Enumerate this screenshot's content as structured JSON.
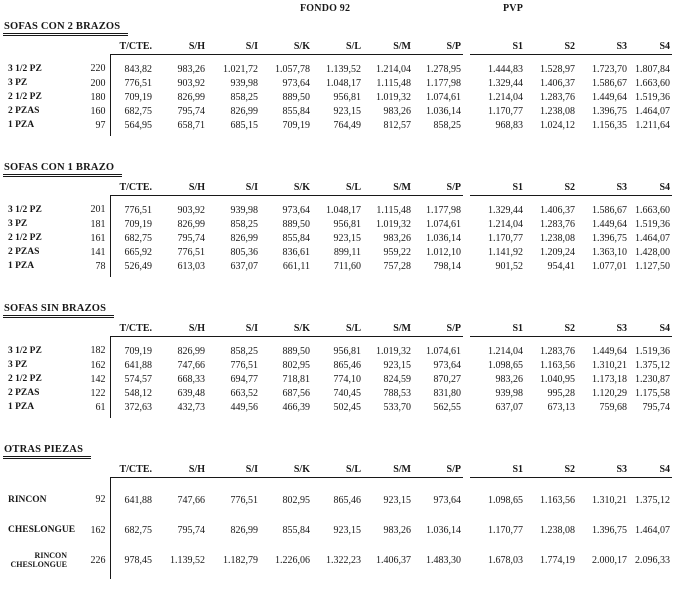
{
  "page": {
    "group_headers": {
      "fondo": "FONDO 92",
      "pvp": "PVP"
    }
  },
  "columns": [
    "T/CTE.",
    "S/H",
    "S/I",
    "S/K",
    "S/L",
    "S/M",
    "S/P",
    "S1",
    "S2",
    "S3",
    "S4"
  ],
  "sections": [
    {
      "title": "SOFAS CON 2 BRAZOS",
      "rows": [
        {
          "label": "3 1/2 PZ",
          "measure": "220",
          "values": [
            "843,82",
            "983,26",
            "1.021,72",
            "1.057,78",
            "1.139,52",
            "1.214,04",
            "1.278,95",
            "1.444,83",
            "1.528,97",
            "1.723,70",
            "1.807,84"
          ]
        },
        {
          "label": "3 PZ",
          "measure": "200",
          "values": [
            "776,51",
            "903,92",
            "939,98",
            "973,64",
            "1.048,17",
            "1.115,48",
            "1.177,98",
            "1.329,44",
            "1.406,37",
            "1.586,67",
            "1.663,60"
          ]
        },
        {
          "label": "2 1/2 PZ",
          "measure": "180",
          "values": [
            "709,19",
            "826,99",
            "858,25",
            "889,50",
            "956,81",
            "1.019,32",
            "1.074,61",
            "1.214,04",
            "1.283,76",
            "1.449,64",
            "1.519,36"
          ]
        },
        {
          "label": "2 PZAS",
          "measure": "160",
          "values": [
            "682,75",
            "795,74",
            "826,99",
            "855,84",
            "923,15",
            "983,26",
            "1.036,14",
            "1.170,77",
            "1.238,08",
            "1.396,75",
            "1.464,07"
          ]
        },
        {
          "label": "1 PZA",
          "measure": "97",
          "values": [
            "564,95",
            "658,71",
            "685,15",
            "709,19",
            "764,49",
            "812,57",
            "858,25",
            "968,83",
            "1.024,12",
            "1.156,35",
            "1.211,64"
          ]
        }
      ]
    },
    {
      "title": "SOFAS CON 1 BRAZO",
      "rows": [
        {
          "label": "3 1/2 PZ",
          "measure": "201",
          "values": [
            "776,51",
            "903,92",
            "939,98",
            "973,64",
            "1.048,17",
            "1.115,48",
            "1.177,98",
            "1.329,44",
            "1.406,37",
            "1.586,67",
            "1.663,60"
          ]
        },
        {
          "label": "3 PZ",
          "measure": "181",
          "values": [
            "709,19",
            "826,99",
            "858,25",
            "889,50",
            "956,81",
            "1.019,32",
            "1.074,61",
            "1.214,04",
            "1.283,76",
            "1.449,64",
            "1.519,36"
          ]
        },
        {
          "label": "2 1/2 PZ",
          "measure": "161",
          "values": [
            "682,75",
            "795,74",
            "826,99",
            "855,84",
            "923,15",
            "983,26",
            "1.036,14",
            "1.170,77",
            "1.238,08",
            "1.396,75",
            "1.464,07"
          ]
        },
        {
          "label": "2 PZAS",
          "measure": "141",
          "values": [
            "665,92",
            "776,51",
            "805,36",
            "836,61",
            "899,11",
            "959,22",
            "1.012,10",
            "1.141,92",
            "1.209,24",
            "1.363,10",
            "1.428,00"
          ]
        },
        {
          "label": "1 PZA",
          "measure": "78",
          "values": [
            "526,49",
            "613,03",
            "637,07",
            "661,11",
            "711,60",
            "757,28",
            "798,14",
            "901,52",
            "954,41",
            "1.077,01",
            "1.127,50"
          ]
        }
      ]
    },
    {
      "title": "SOFAS SIN BRAZOS",
      "rows": [
        {
          "label": "3 1/2 PZ",
          "measure": "182",
          "values": [
            "709,19",
            "826,99",
            "858,25",
            "889,50",
            "956,81",
            "1.019,32",
            "1.074,61",
            "1.214,04",
            "1.283,76",
            "1.449,64",
            "1.519,36"
          ]
        },
        {
          "label": "3 PZ",
          "measure": "162",
          "values": [
            "641,88",
            "747,66",
            "776,51",
            "802,95",
            "865,46",
            "923,15",
            "973,64",
            "1.098,65",
            "1.163,56",
            "1.310,21",
            "1.375,12"
          ]
        },
        {
          "label": "2 1/2 PZ",
          "measure": "142",
          "values": [
            "574,57",
            "668,33",
            "694,77",
            "718,81",
            "774,10",
            "824,59",
            "870,27",
            "983,26",
            "1.040,95",
            "1.173,18",
            "1.230,87"
          ]
        },
        {
          "label": "2 PZAS",
          "measure": "122",
          "values": [
            "548,12",
            "639,48",
            "663,52",
            "687,56",
            "740,45",
            "788,53",
            "831,80",
            "939,98",
            "995,28",
            "1.120,29",
            "1.175,58"
          ]
        },
        {
          "label": "1 PZA",
          "measure": "61",
          "values": [
            "372,63",
            "432,73",
            "449,56",
            "466,39",
            "502,45",
            "533,70",
            "562,55",
            "637,07",
            "673,13",
            "759,68",
            "795,74"
          ]
        }
      ]
    },
    {
      "title": "OTRAS PIEZAS",
      "rows": [
        {
          "label": "RINCON",
          "measure": "92",
          "values": [
            "641,88",
            "747,66",
            "776,51",
            "802,95",
            "865,46",
            "923,15",
            "973,64",
            "1.098,65",
            "1.163,56",
            "1.310,21",
            "1.375,12"
          ]
        },
        {
          "label": "CHESLONGUE",
          "measure": "162",
          "values": [
            "682,75",
            "795,74",
            "826,99",
            "855,84",
            "923,15",
            "983,26",
            "1.036,14",
            "1.170,77",
            "1.238,08",
            "1.396,75",
            "1.464,07"
          ]
        },
        {
          "label": "RINCON\nCHESLONGUE",
          "measure": "226",
          "values": [
            "978,45",
            "1.139,52",
            "1.182,79",
            "1.226,06",
            "1.322,23",
            "1.406,37",
            "1.483,30",
            "1.678,03",
            "1.774,19",
            "2.000,17",
            "2.096,33"
          ]
        }
      ]
    }
  ]
}
